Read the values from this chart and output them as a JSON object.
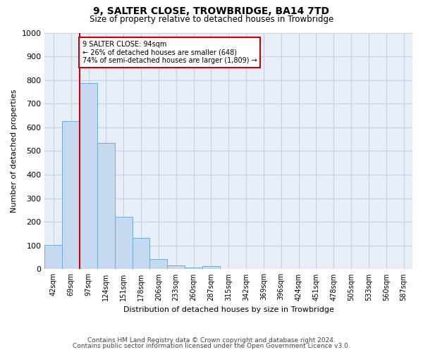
{
  "title1": "9, SALTER CLOSE, TROWBRIDGE, BA14 7TD",
  "title2": "Size of property relative to detached houses in Trowbridge",
  "xlabel": "Distribution of detached houses by size in Trowbridge",
  "ylabel": "Number of detached properties",
  "bar_values": [
    103,
    625,
    788,
    535,
    222,
    133,
    42,
    16,
    8,
    12,
    0,
    0,
    0,
    0,
    0,
    0,
    0,
    0,
    0,
    0,
    0
  ],
  "bar_labels": [
    "42sqm",
    "69sqm",
    "97sqm",
    "124sqm",
    "151sqm",
    "178sqm",
    "206sqm",
    "233sqm",
    "260sqm",
    "287sqm",
    "315sqm",
    "342sqm",
    "369sqm",
    "396sqm",
    "424sqm",
    "451sqm",
    "478sqm",
    "505sqm",
    "533sqm",
    "560sqm",
    "587sqm"
  ],
  "bar_color": "#c6d9f0",
  "bar_edge_color": "#6baed6",
  "vline_x_index": 2,
  "vline_color": "#cc0000",
  "annotation_text": "9 SALTER CLOSE: 94sqm\n← 26% of detached houses are smaller (648)\n74% of semi-detached houses are larger (1,809) →",
  "annotation_box_color": "#ffffff",
  "annotation_box_edge": "#cc0000",
  "ylim": [
    0,
    1000
  ],
  "yticks": [
    0,
    100,
    200,
    300,
    400,
    500,
    600,
    700,
    800,
    900,
    1000
  ],
  "footer_line1": "Contains HM Land Registry data © Crown copyright and database right 2024.",
  "footer_line2": "Contains public sector information licensed under the Open Government Licence v3.0.",
  "bg_color": "#ffffff",
  "plot_bg_color": "#e8eef8",
  "grid_color": "#c8d0e0",
  "title1_fontsize": 10,
  "title2_fontsize": 8.5,
  "ylabel_fontsize": 8,
  "xlabel_fontsize": 8,
  "tick_fontsize": 7,
  "footer_fontsize": 6.5
}
